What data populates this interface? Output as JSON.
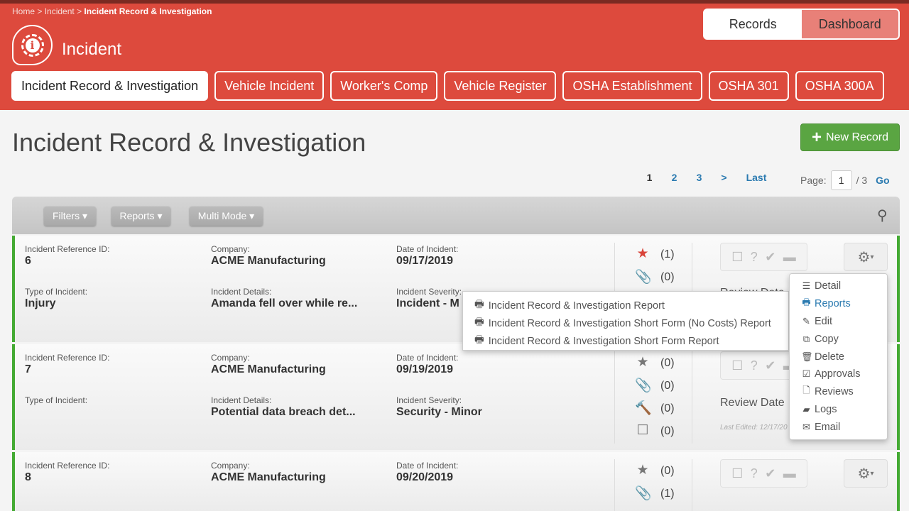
{
  "breadcrumb": {
    "home": "Home",
    "module": "Incident",
    "current": "Incident Record & Investigation",
    "sep": " > "
  },
  "app_title": "Incident",
  "view_toggle": {
    "records": "Records",
    "dashboard": "Dashboard"
  },
  "tabs": [
    "Incident Record & Investigation",
    "Vehicle Incident",
    "Worker's Comp",
    "Vehicle Register",
    "OSHA Establishment",
    "OSHA 301",
    "OSHA 300A"
  ],
  "page_title": "Incident Record & Investigation",
  "new_record": "New Record",
  "pagination": {
    "pages": [
      "1",
      "2",
      "3"
    ],
    "next": ">",
    "last": "Last",
    "page_label": "Page:",
    "page_value": "1",
    "total": "/ 3",
    "go": "Go"
  },
  "toolbar": {
    "filters": "Filters ▾",
    "reports": "Reports ▾",
    "multi": "Multi Mode ▾"
  },
  "labels": {
    "ref": "Incident Reference ID:",
    "company": "Company:",
    "date": "Date of Incident:",
    "type": "Type of Incident:",
    "details": "Incident Details:",
    "severity": "Incident Severity:",
    "review": "Review Date",
    "last_edited": "Last Edited: 12/17/20"
  },
  "records": [
    {
      "ref": "6",
      "company": "ACME Manufacturing",
      "date": "09/17/2019",
      "type": "Injury",
      "details": "Amanda fell over while re...",
      "severity": "Incident - M",
      "stars": "(1)",
      "attach": "(0)"
    },
    {
      "ref": "7",
      "company": "ACME Manufacturing",
      "date": "09/19/2019",
      "type": "",
      "details": "Potential data breach det...",
      "severity": "Security - Minor",
      "stars": "(0)",
      "attach": "(0)",
      "actions": "(0)",
      "notes": "(0)"
    },
    {
      "ref": "8",
      "company": "ACME Manufacturing",
      "date": "09/20/2019",
      "stars": "(0)",
      "attach": "(1)"
    }
  ],
  "reports_submenu": [
    "Incident Record & Investigation Report",
    "Incident Record & Investigation Short Form (No Costs) Report",
    "Incident Record & Investigation Short Form Report"
  ],
  "gear_menu": [
    "Detail",
    "Reports",
    "Edit",
    "Copy",
    "Delete",
    "Approvals",
    "Reviews",
    "Logs",
    "Email"
  ],
  "colors": {
    "header": "#dd4a3d",
    "accent_green": "#5aa542",
    "link": "#2a7ab0"
  }
}
